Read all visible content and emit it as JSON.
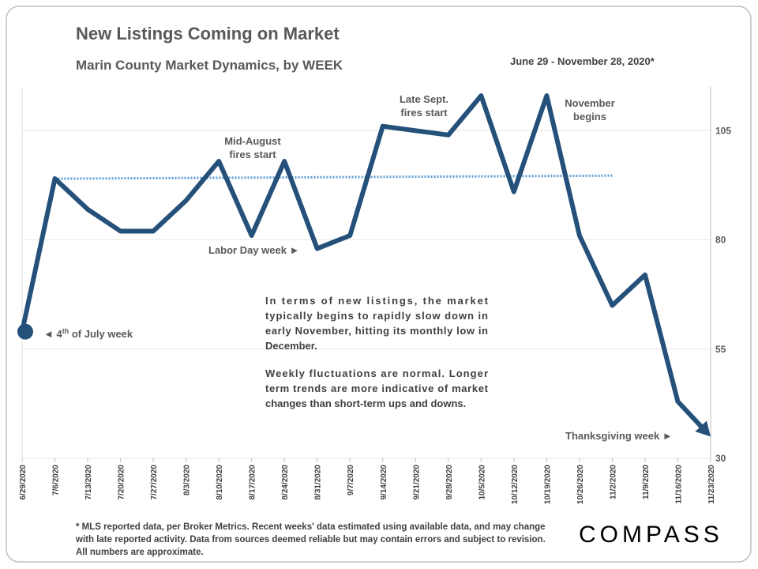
{
  "chart_data": {
    "type": "line",
    "title": "New Listings Coming on Market",
    "subtitle": "Marin County Market Dynamics, by WEEK",
    "date_range": "June 29 - November 28, 2020*",
    "categories": [
      "6/29/2020",
      "7/6/2020",
      "7/13/2020",
      "7/20/2020",
      "7/27/2020",
      "8/3/2020",
      "8/10/2020",
      "8/17/2020",
      "8/24/2020",
      "8/31/2020",
      "9/7/2020",
      "9/14/2020",
      "9/21/2020",
      "9/28/2020",
      "10/5/2020",
      "10/12/2020",
      "10/19/2020",
      "10/26/2020",
      "11/2/2020",
      "11/9/2020",
      "11/16/2020",
      "11/23/2020"
    ],
    "series": [
      {
        "color": "#24507a",
        "values": [
          59,
          94,
          87,
          82,
          82,
          89,
          98,
          81,
          98,
          78,
          81,
          106,
          105,
          104,
          113,
          91,
          113,
          81,
          65,
          72,
          43,
          35
        ]
      }
    ],
    "trend": {
      "color": "#5b9bd5",
      "from": "7/6/2020",
      "to": "11/2/2020",
      "values": [
        94,
        94.7
      ]
    },
    "ylim": [
      30,
      115
    ],
    "yticks": [
      30,
      55,
      80,
      105
    ],
    "grid": true,
    "annotations": [
      {
        "text": [
          "Mid-August",
          "fires start"
        ]
      },
      {
        "text": [
          "Late Sept.",
          "fires start"
        ]
      },
      {
        "text": [
          "November",
          "begins"
        ]
      },
      {
        "text": [
          "Labor Day week ►"
        ]
      },
      {
        "text": [
          "◄ 4",
          "th",
          " of July week"
        ]
      },
      {
        "text": [
          "Thanksgiving week ►"
        ]
      }
    ],
    "note": [
      [
        "In terms of new listings, the market",
        "typically begins to rapidly slow down in",
        "early November, hitting its monthly low in",
        "December."
      ],
      [
        "Weekly fluctuations are normal. Longer",
        "term trends are more indicative of market",
        "changes than short-term ups and downs."
      ]
    ],
    "footnote": [
      "* MLS reported data, per Broker Metrics. Recent weeks' data estimated using available data, and may change",
      "with late reported activity. Data from sources deemed reliable but may contain errors and subject to revision.",
      "All numbers are approximate."
    ],
    "logo": "COMPASS"
  }
}
